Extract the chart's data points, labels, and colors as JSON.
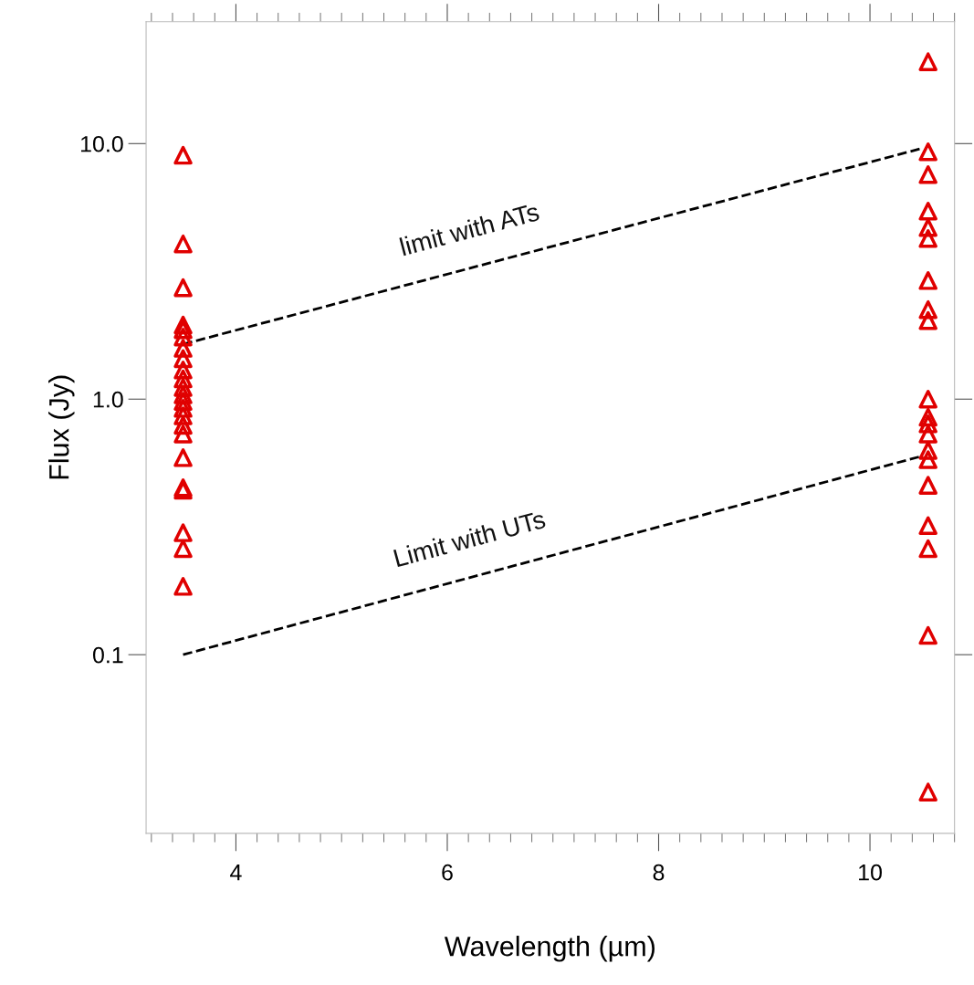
{
  "chart_data": {
    "type": "scatter",
    "xlabel": "Wavelength (µm)",
    "ylabel": "Flux (Jy)",
    "log": "y",
    "xlim": [
      3.15,
      10.8
    ],
    "ylim": [
      0.02,
      30
    ],
    "xticks": [
      4,
      6,
      8,
      10
    ],
    "yticks": [
      {
        "value": 0.1,
        "label": "0.1"
      },
      {
        "value": 1,
        "label": "1.0"
      },
      {
        "value": 10,
        "label": "10.0"
      }
    ],
    "marker": "triangle",
    "grid": false,
    "legend": false,
    "series": [
      {
        "color": "#e00000",
        "x": [
          3.5,
          3.5,
          3.5,
          3.5,
          3.5,
          3.5,
          3.5,
          3.5,
          3.5,
          3.5,
          3.5,
          3.5,
          3.5,
          3.5,
          3.5,
          3.5,
          3.5,
          3.5,
          3.5,
          3.5,
          3.5,
          3.5,
          3.5
        ],
        "values": [
          9.0,
          4.05,
          2.73,
          1.95,
          1.87,
          1.75,
          1.58,
          1.44,
          1.3,
          1.2,
          1.11,
          1.04,
          0.98,
          0.92,
          0.86,
          0.79,
          0.73,
          0.59,
          0.45,
          0.44,
          0.3,
          0.26,
          0.185
        ]
      },
      {
        "color": "#e00000",
        "x": [
          10.55,
          10.55,
          10.55,
          10.55,
          10.55,
          10.55,
          10.55,
          10.55,
          10.55,
          10.55,
          10.55,
          10.55,
          10.55,
          10.55,
          10.55,
          10.55,
          10.55,
          10.55,
          10.55,
          10.55
        ],
        "values": [
          20.9,
          9.29,
          7.56,
          5.44,
          4.69,
          4.25,
          2.91,
          2.24,
          2.03,
          1.0,
          0.85,
          0.8,
          0.73,
          0.63,
          0.58,
          0.46,
          0.32,
          0.26,
          0.119,
          0.029
        ]
      },
      {
        "type": "line",
        "line_style": "dashed",
        "marker": "none",
        "color": "#000000",
        "x": [
          3.5,
          10.5
        ],
        "values": [
          1.64,
          9.6
        ]
      },
      {
        "type": "line",
        "line_style": "dashed",
        "marker": "none",
        "color": "#000000",
        "x": [
          3.5,
          10.5
        ],
        "values": [
          0.1,
          0.6
        ]
      }
    ],
    "annotations": [
      "limit with ATs",
      "Limit with UTs"
    ]
  }
}
